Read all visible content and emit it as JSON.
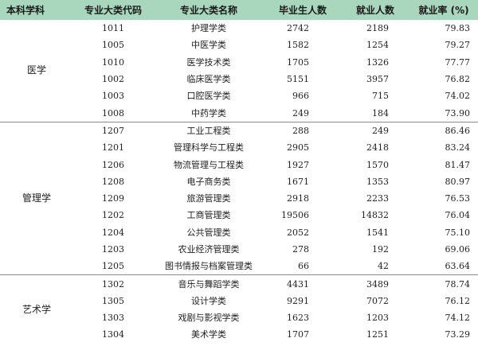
{
  "headers": [
    "本科学科",
    "专业大类代码",
    "专业大类名称",
    "毕业生人数",
    "就业人数",
    "就业率 (%)"
  ],
  "groups": [
    {
      "discipline": "医学",
      "rows": [
        {
          "code": "1011",
          "name": "护理学类",
          "graduates": "2742",
          "employed": "2189",
          "rate": "79.83"
        },
        {
          "code": "1005",
          "name": "中医学类",
          "graduates": "1582",
          "employed": "1254",
          "rate": "79.27"
        },
        {
          "code": "1010",
          "name": "医学技术类",
          "graduates": "1705",
          "employed": "1326",
          "rate": "77.77"
        },
        {
          "code": "1002",
          "name": "临床医学类",
          "graduates": "5151",
          "employed": "3957",
          "rate": "76.82"
        },
        {
          "code": "1003",
          "name": "口腔医学类",
          "graduates": "966",
          "employed": "715",
          "rate": "74.02"
        },
        {
          "code": "1008",
          "name": "中药学类",
          "graduates": "249",
          "employed": "184",
          "rate": "73.90"
        }
      ]
    },
    {
      "discipline": "管理学",
      "rows": [
        {
          "code": "1207",
          "name": "工业工程类",
          "graduates": "288",
          "employed": "249",
          "rate": "86.46"
        },
        {
          "code": "1201",
          "name": "管理科学与工程类",
          "graduates": "2905",
          "employed": "2418",
          "rate": "83.24"
        },
        {
          "code": "1206",
          "name": "物流管理与工程类",
          "graduates": "1927",
          "employed": "1570",
          "rate": "81.47"
        },
        {
          "code": "1208",
          "name": "电子商务类",
          "graduates": "1671",
          "employed": "1353",
          "rate": "80.97"
        },
        {
          "code": "1209",
          "name": "旅游管理类",
          "graduates": "2918",
          "employed": "2233",
          "rate": "76.53"
        },
        {
          "code": "1202",
          "name": "工商管理类",
          "graduates": "19506",
          "employed": "14832",
          "rate": "76.04"
        },
        {
          "code": "1204",
          "name": "公共管理类",
          "graduates": "2052",
          "employed": "1541",
          "rate": "75.10"
        },
        {
          "code": "1203",
          "name": "农业经济管理类",
          "graduates": "278",
          "employed": "192",
          "rate": "69.06"
        },
        {
          "code": "1205",
          "name": "图书情报与档案管理类",
          "graduates": "66",
          "employed": "42",
          "rate": "63.64"
        }
      ]
    },
    {
      "discipline": "艺术学",
      "rows": [
        {
          "code": "1302",
          "name": "音乐与舞蹈学类",
          "graduates": "4431",
          "employed": "3489",
          "rate": "78.74"
        },
        {
          "code": "1305",
          "name": "设计学类",
          "graduates": "9291",
          "employed": "7072",
          "rate": "76.12"
        },
        {
          "code": "1303",
          "name": "戏剧与影视学类",
          "graduates": "1623",
          "employed": "1203",
          "rate": "74.12"
        },
        {
          "code": "1304",
          "name": "美术学类",
          "graduates": "1707",
          "employed": "1251",
          "rate": "73.29"
        }
      ]
    }
  ]
}
